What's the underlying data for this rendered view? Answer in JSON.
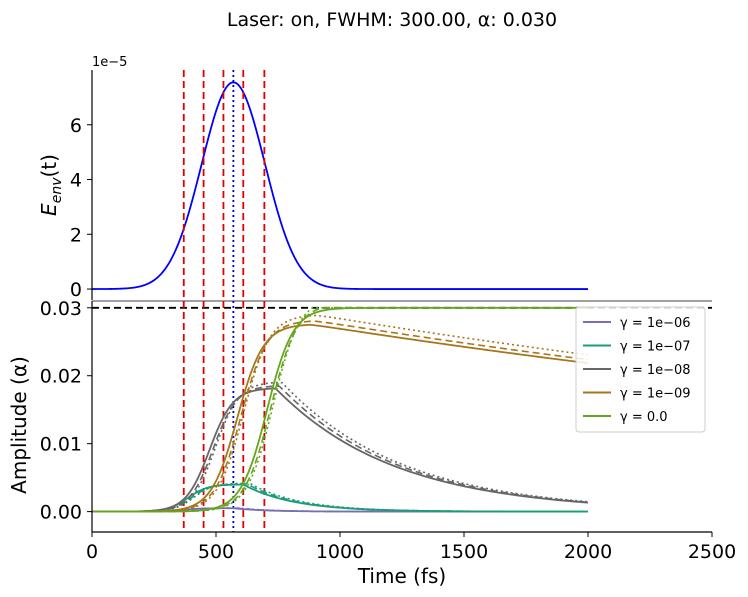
{
  "figure": {
    "suptitle": "Laser: on, FWHM: 300.00, α: 0.030"
  },
  "chart_data": [
    {
      "type": "line",
      "panel": "top",
      "ylabel": "E_env(t)",
      "ylabel_math": {
        "base": "E",
        "sub": "env",
        "rest": "(t)"
      },
      "offset_text": "1e−5",
      "xlim": [
        0,
        2500
      ],
      "ylim": [
        -0.4,
        8.0
      ],
      "yticks": [
        0,
        2,
        4,
        6
      ],
      "ytick_labels": [
        "0",
        "2",
        "4",
        "6"
      ],
      "series": [
        {
          "color": "#0000ff",
          "function": "gaussian",
          "peak": 7.55,
          "center": 570,
          "fwhm": 300,
          "x_range": [
            0,
            2000
          ]
        }
      ],
      "vlines_red_dashed": [
        370,
        450,
        530,
        610,
        695
      ],
      "vline_blue_dotted": 570,
      "grid": false
    },
    {
      "type": "line",
      "panel": "bottom",
      "xlabel": "Time (fs)",
      "ylabel": "Amplitude (α)",
      "xlim": [
        0,
        2500
      ],
      "ylim": [
        -0.003,
        0.031
      ],
      "xticks": [
        0,
        500,
        1000,
        1500,
        2000,
        2500
      ],
      "xtick_labels": [
        "0",
        "500",
        "1000",
        "1500",
        "2000",
        "2500"
      ],
      "yticks": [
        0.0,
        0.01,
        0.02,
        0.03
      ],
      "ytick_labels": [
        "0.00",
        "0.01",
        "0.02",
        "0.03"
      ],
      "hline_black_dashed": 0.03,
      "vlines_red_dashed": [
        370,
        450,
        530,
        610,
        695
      ],
      "vline_blue_dotted": 570,
      "legend_position": "upper right",
      "grid": false,
      "series": [
        {
          "name": "γ = 1e−06",
          "color": "#7570b3",
          "peak": 0.0005,
          "peak_at": 570,
          "value_at_2000": 0.0,
          "rise_width": 150,
          "decay_tau": 130
        },
        {
          "name": "γ = 1e−07",
          "color": "#1b9e77",
          "peak": 0.004,
          "peak_at": 610,
          "value_at_2000": 0.0,
          "rise_width": 160,
          "decay_tau": 200
        },
        {
          "name": "γ = 1e−08",
          "color": "#666666",
          "peak": 0.0182,
          "peak_at": 740,
          "value_at_2000": 0.0013,
          "rise_width": 190,
          "decay_tau": 480
        },
        {
          "name": "γ = 1e−09",
          "color": "#a6761d",
          "peak": 0.0276,
          "peak_at": 880,
          "value_at_2000": 0.0219,
          "rise_width": 210,
          "decay_tau": 4800
        },
        {
          "name": "γ = 0.0",
          "color": "#66a61e",
          "peak": 0.03,
          "peak_at": 1000,
          "value_at_2000": 0.03,
          "rise_width": 210,
          "decay_tau": 0
        }
      ]
    }
  ]
}
